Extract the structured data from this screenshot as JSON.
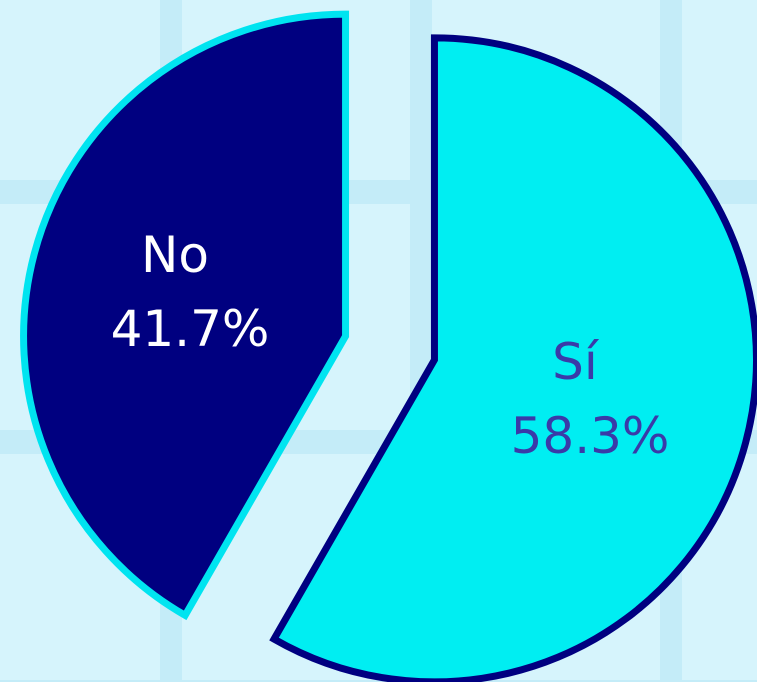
{
  "chart_data": {
    "type": "pie",
    "categories": [
      "Sí",
      "No"
    ],
    "values": [
      58.3,
      41.7
    ],
    "value_labels": [
      "58.3%",
      "41.7%"
    ],
    "colors": [
      "#00eef2",
      "#000080"
    ],
    "edge_colors": [
      "#000080",
      "#00e4f0"
    ],
    "label_colors": [
      "#3a3aa8",
      "#ffffff"
    ]
  }
}
